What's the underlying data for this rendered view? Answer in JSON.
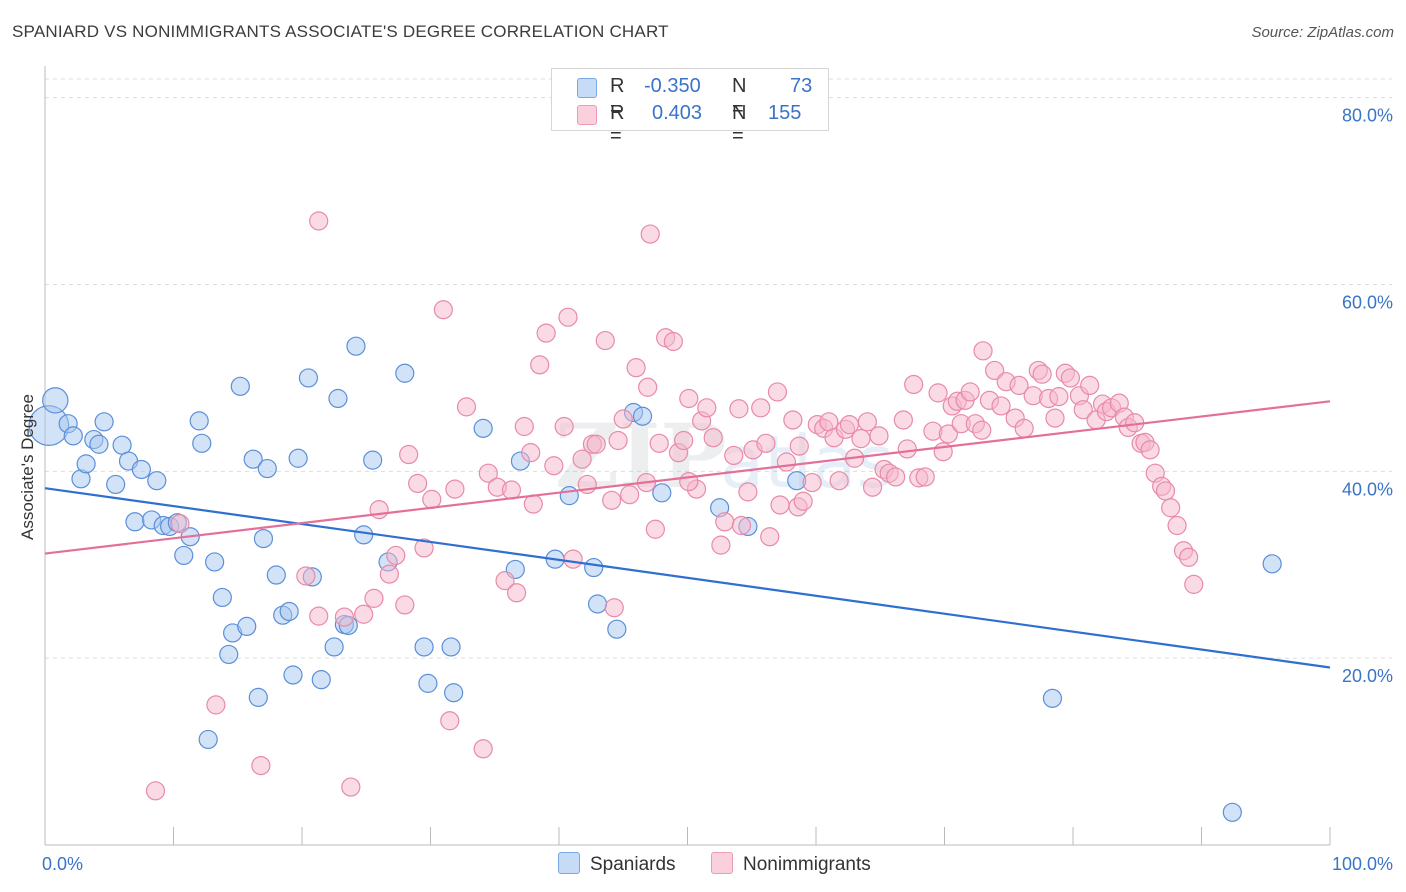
{
  "title": "SPANIARD VS NONIMMIGRANTS ASSOCIATE'S DEGREE CORRELATION CHART",
  "source": "Source: ZipAtlas.com",
  "legend_top": [
    {
      "r_label": "R =",
      "r_value": "-0.350",
      "n_label": "N =",
      "n_value": "73",
      "color": "#a8c8f0"
    },
    {
      "r_label": "R =",
      "r_value": "0.403",
      "n_label": "N =",
      "n_value": "155",
      "color": "#f6b8cb"
    }
  ],
  "legend_bottom": [
    {
      "label": "Spaniards",
      "color": "#a8c8f0"
    },
    {
      "label": "Nonimmigrants",
      "color": "#f6b8cb"
    }
  ],
  "chart_data": {
    "type": "scatter",
    "title": "SPANIARD VS NONIMMIGRANTS ASSOCIATE'S DEGREE CORRELATION CHART",
    "xlabel": "",
    "ylabel": "Associate's Degree",
    "xlim": [
      0,
      100
    ],
    "ylim": [
      0,
      82
    ],
    "x_tick_labels": [
      "0.0%",
      "100.0%"
    ],
    "y_ticks": [
      20,
      40,
      60,
      80
    ],
    "y_tick_labels": [
      "20.0%",
      "40.0%",
      "60.0%",
      "80.0%"
    ],
    "grid": true,
    "legend_position": "top-center",
    "watermark": "ZIPatlas",
    "series": [
      {
        "name": "Spaniards",
        "color": "#5b8fd9",
        "fill": "#a8c8f0",
        "r": -0.35,
        "n": 73,
        "trend": {
          "x": [
            0,
            100
          ],
          "y": [
            38.2,
            19.0
          ]
        },
        "points": [
          [
            0.3,
            44.9,
            2.2
          ],
          [
            0.8,
            47.6,
            1.4
          ],
          [
            1.8,
            45.1,
            1
          ],
          [
            2.2,
            43.8,
            1
          ],
          [
            2.8,
            39.2,
            1
          ],
          [
            3.2,
            40.8,
            1
          ],
          [
            3.8,
            43.4,
            1
          ],
          [
            4.2,
            42.9,
            1
          ],
          [
            4.6,
            45.3,
            1
          ],
          [
            5.5,
            38.6,
            1
          ],
          [
            6.0,
            42.8,
            1
          ],
          [
            6.5,
            41.1,
            1
          ],
          [
            7.0,
            34.6,
            1
          ],
          [
            7.5,
            40.2,
            1
          ],
          [
            8.3,
            34.8,
            1
          ],
          [
            8.7,
            39.0,
            1
          ],
          [
            9.2,
            34.2,
            1
          ],
          [
            9.7,
            34.1,
            1
          ],
          [
            10.3,
            34.5,
            1
          ],
          [
            10.8,
            31.0,
            1
          ],
          [
            11.3,
            33.0,
            1
          ],
          [
            12.0,
            45.4,
            1
          ],
          [
            12.2,
            43.0,
            1
          ],
          [
            12.7,
            11.3,
            1
          ],
          [
            13.2,
            30.3,
            1
          ],
          [
            13.8,
            26.5,
            1
          ],
          [
            14.3,
            20.4,
            1
          ],
          [
            14.6,
            22.7,
            1
          ],
          [
            15.2,
            49.1,
            1
          ],
          [
            15.7,
            23.4,
            1
          ],
          [
            16.2,
            41.3,
            1
          ],
          [
            16.6,
            15.8,
            1
          ],
          [
            17.0,
            32.8,
            1
          ],
          [
            17.3,
            40.3,
            1
          ],
          [
            18.0,
            28.9,
            1
          ],
          [
            18.5,
            24.6,
            1
          ],
          [
            19.0,
            25.0,
            1
          ],
          [
            19.3,
            18.2,
            1
          ],
          [
            19.7,
            41.4,
            1
          ],
          [
            20.5,
            50.0,
            1
          ],
          [
            20.8,
            28.7,
            1
          ],
          [
            21.5,
            17.7,
            1
          ],
          [
            22.5,
            21.2,
            1
          ],
          [
            22.8,
            47.8,
            1
          ],
          [
            23.3,
            23.6,
            1
          ],
          [
            23.6,
            23.5,
            1
          ],
          [
            24.2,
            53.4,
            1
          ],
          [
            24.8,
            33.2,
            1
          ],
          [
            25.5,
            41.2,
            1
          ],
          [
            26.7,
            30.3,
            1
          ],
          [
            28.0,
            50.5,
            1
          ],
          [
            29.5,
            21.2,
            1
          ],
          [
            29.8,
            17.3,
            1
          ],
          [
            31.6,
            21.2,
            1
          ],
          [
            31.8,
            16.3,
            1
          ],
          [
            34.1,
            44.6,
            1
          ],
          [
            36.6,
            29.5,
            1
          ],
          [
            37.0,
            41.1,
            1
          ],
          [
            39.7,
            30.6,
            1
          ],
          [
            40.8,
            37.4,
            1
          ],
          [
            42.7,
            29.7,
            1
          ],
          [
            43.0,
            25.8,
            1
          ],
          [
            44.5,
            23.1,
            1
          ],
          [
            45.8,
            46.3,
            1
          ],
          [
            46.5,
            45.9,
            1
          ],
          [
            48.0,
            37.7,
            1
          ],
          [
            52.5,
            36.1,
            1
          ],
          [
            54.7,
            34.1,
            1
          ],
          [
            58.5,
            39.0,
            1
          ],
          [
            78.4,
            15.7,
            1
          ],
          [
            92.4,
            3.5,
            1
          ],
          [
            95.5,
            30.1,
            1
          ]
        ]
      },
      {
        "name": "Nonimmigrants",
        "color": "#e88aa8",
        "fill": "#f6b8cb",
        "r": 0.403,
        "n": 155,
        "trend": {
          "x": [
            0,
            100
          ],
          "y": [
            31.2,
            47.5
          ]
        },
        "points": [
          [
            8.6,
            5.8
          ],
          [
            10.5,
            34.4
          ],
          [
            13.3,
            15.0
          ],
          [
            16.8,
            8.5
          ],
          [
            20.3,
            28.8
          ],
          [
            21.3,
            66.8
          ],
          [
            21.3,
            24.5
          ],
          [
            23.3,
            24.4
          ],
          [
            23.8,
            6.2
          ],
          [
            24.8,
            24.7
          ],
          [
            25.6,
            26.4
          ],
          [
            26.0,
            35.9
          ],
          [
            26.8,
            29.0
          ],
          [
            27.3,
            31.0
          ],
          [
            28.0,
            25.7
          ],
          [
            28.3,
            41.8
          ],
          [
            29.0,
            38.7
          ],
          [
            29.5,
            31.8
          ],
          [
            30.1,
            37.0
          ],
          [
            31.0,
            57.3
          ],
          [
            31.5,
            13.3
          ],
          [
            31.9,
            38.1
          ],
          [
            32.8,
            46.9
          ],
          [
            34.1,
            10.3
          ],
          [
            34.5,
            39.8
          ],
          [
            35.2,
            38.3
          ],
          [
            35.8,
            28.3
          ],
          [
            36.7,
            27.0
          ],
          [
            37.3,
            44.8
          ],
          [
            37.8,
            42.0
          ],
          [
            38.0,
            36.5
          ],
          [
            38.5,
            51.4
          ],
          [
            39.0,
            54.8
          ],
          [
            39.6,
            40.6
          ],
          [
            40.4,
            44.8
          ],
          [
            40.7,
            56.5
          ],
          [
            41.1,
            30.6
          ],
          [
            41.8,
            41.3
          ],
          [
            42.2,
            38.6
          ],
          [
            42.6,
            42.9
          ],
          [
            42.9,
            42.9
          ],
          [
            43.6,
            54.0
          ],
          [
            44.1,
            36.9
          ],
          [
            44.3,
            25.4
          ],
          [
            44.6,
            43.3
          ],
          [
            45.0,
            45.6
          ],
          [
            45.5,
            37.5
          ],
          [
            46.0,
            51.1
          ],
          [
            46.9,
            49.0
          ],
          [
            47.1,
            65.4
          ],
          [
            47.5,
            33.8
          ],
          [
            47.8,
            43.0
          ],
          [
            48.3,
            54.3
          ],
          [
            48.9,
            53.9
          ],
          [
            49.3,
            42.0
          ],
          [
            49.7,
            43.3
          ],
          [
            50.1,
            47.8
          ],
          [
            50.7,
            38.1
          ],
          [
            51.1,
            45.4
          ],
          [
            51.5,
            46.8
          ],
          [
            52.0,
            43.6
          ],
          [
            52.6,
            32.1
          ],
          [
            52.9,
            34.6
          ],
          [
            53.6,
            41.7
          ],
          [
            54.2,
            34.2
          ],
          [
            54.7,
            37.8
          ],
          [
            55.1,
            42.3
          ],
          [
            55.7,
            46.8
          ],
          [
            56.1,
            43.0
          ],
          [
            56.4,
            33.0
          ],
          [
            57.0,
            48.5
          ],
          [
            57.2,
            36.4
          ],
          [
            57.7,
            41.0
          ],
          [
            58.2,
            45.5
          ],
          [
            58.6,
            36.2
          ],
          [
            59.0,
            36.8
          ],
          [
            59.7,
            38.8
          ],
          [
            60.1,
            45.0
          ],
          [
            60.6,
            44.6
          ],
          [
            61.0,
            45.3
          ],
          [
            61.4,
            43.6
          ],
          [
            61.8,
            39.0
          ],
          [
            62.3,
            44.5
          ],
          [
            62.6,
            45.0
          ],
          [
            63.0,
            41.4
          ],
          [
            63.5,
            43.5
          ],
          [
            64.0,
            45.3
          ],
          [
            64.4,
            38.3
          ],
          [
            64.9,
            43.8
          ],
          [
            65.3,
            40.2
          ],
          [
            65.7,
            39.8
          ],
          [
            66.2,
            39.4
          ],
          [
            66.8,
            45.5
          ],
          [
            67.1,
            42.4
          ],
          [
            67.6,
            49.3
          ],
          [
            68.0,
            39.3
          ],
          [
            68.5,
            39.4
          ],
          [
            69.1,
            44.3
          ],
          [
            69.5,
            48.4
          ],
          [
            69.9,
            42.1
          ],
          [
            70.3,
            44.0
          ],
          [
            70.6,
            47.0
          ],
          [
            71.0,
            47.5
          ],
          [
            71.3,
            45.1
          ],
          [
            71.6,
            47.6
          ],
          [
            72.0,
            48.5
          ],
          [
            72.4,
            45.1
          ],
          [
            72.9,
            44.4
          ],
          [
            73.5,
            47.6
          ],
          [
            73.9,
            50.8
          ],
          [
            74.4,
            47.0
          ],
          [
            74.8,
            49.6
          ],
          [
            75.5,
            45.7
          ],
          [
            75.8,
            49.2
          ],
          [
            76.2,
            44.6
          ],
          [
            76.9,
            48.1
          ],
          [
            77.3,
            50.8
          ],
          [
            77.6,
            50.4
          ],
          [
            78.1,
            47.8
          ],
          [
            78.6,
            45.7
          ],
          [
            78.9,
            48.0
          ],
          [
            79.4,
            50.5
          ],
          [
            79.8,
            50.0
          ],
          [
            80.5,
            48.1
          ],
          [
            80.8,
            46.6
          ],
          [
            81.3,
            49.2
          ],
          [
            81.8,
            45.5
          ],
          [
            82.3,
            47.2
          ],
          [
            82.6,
            46.4
          ],
          [
            83.0,
            46.8
          ],
          [
            83.6,
            47.3
          ],
          [
            84.0,
            45.8
          ],
          [
            84.3,
            44.7
          ],
          [
            84.8,
            45.2
          ],
          [
            85.3,
            43.0
          ],
          [
            85.6,
            43.1
          ],
          [
            86.0,
            42.3
          ],
          [
            86.4,
            39.8
          ],
          [
            86.9,
            38.4
          ],
          [
            87.2,
            37.9
          ],
          [
            87.6,
            36.1
          ],
          [
            88.1,
            34.2
          ],
          [
            88.6,
            31.5
          ],
          [
            89.0,
            30.8
          ],
          [
            89.4,
            27.9
          ],
          [
            50.1,
            38.9
          ],
          [
            36.3,
            38.0
          ],
          [
            46.8,
            38.8
          ],
          [
            58.7,
            42.7
          ],
          [
            54.0,
            46.7
          ],
          [
            73.0,
            52.9
          ]
        ]
      }
    ]
  }
}
